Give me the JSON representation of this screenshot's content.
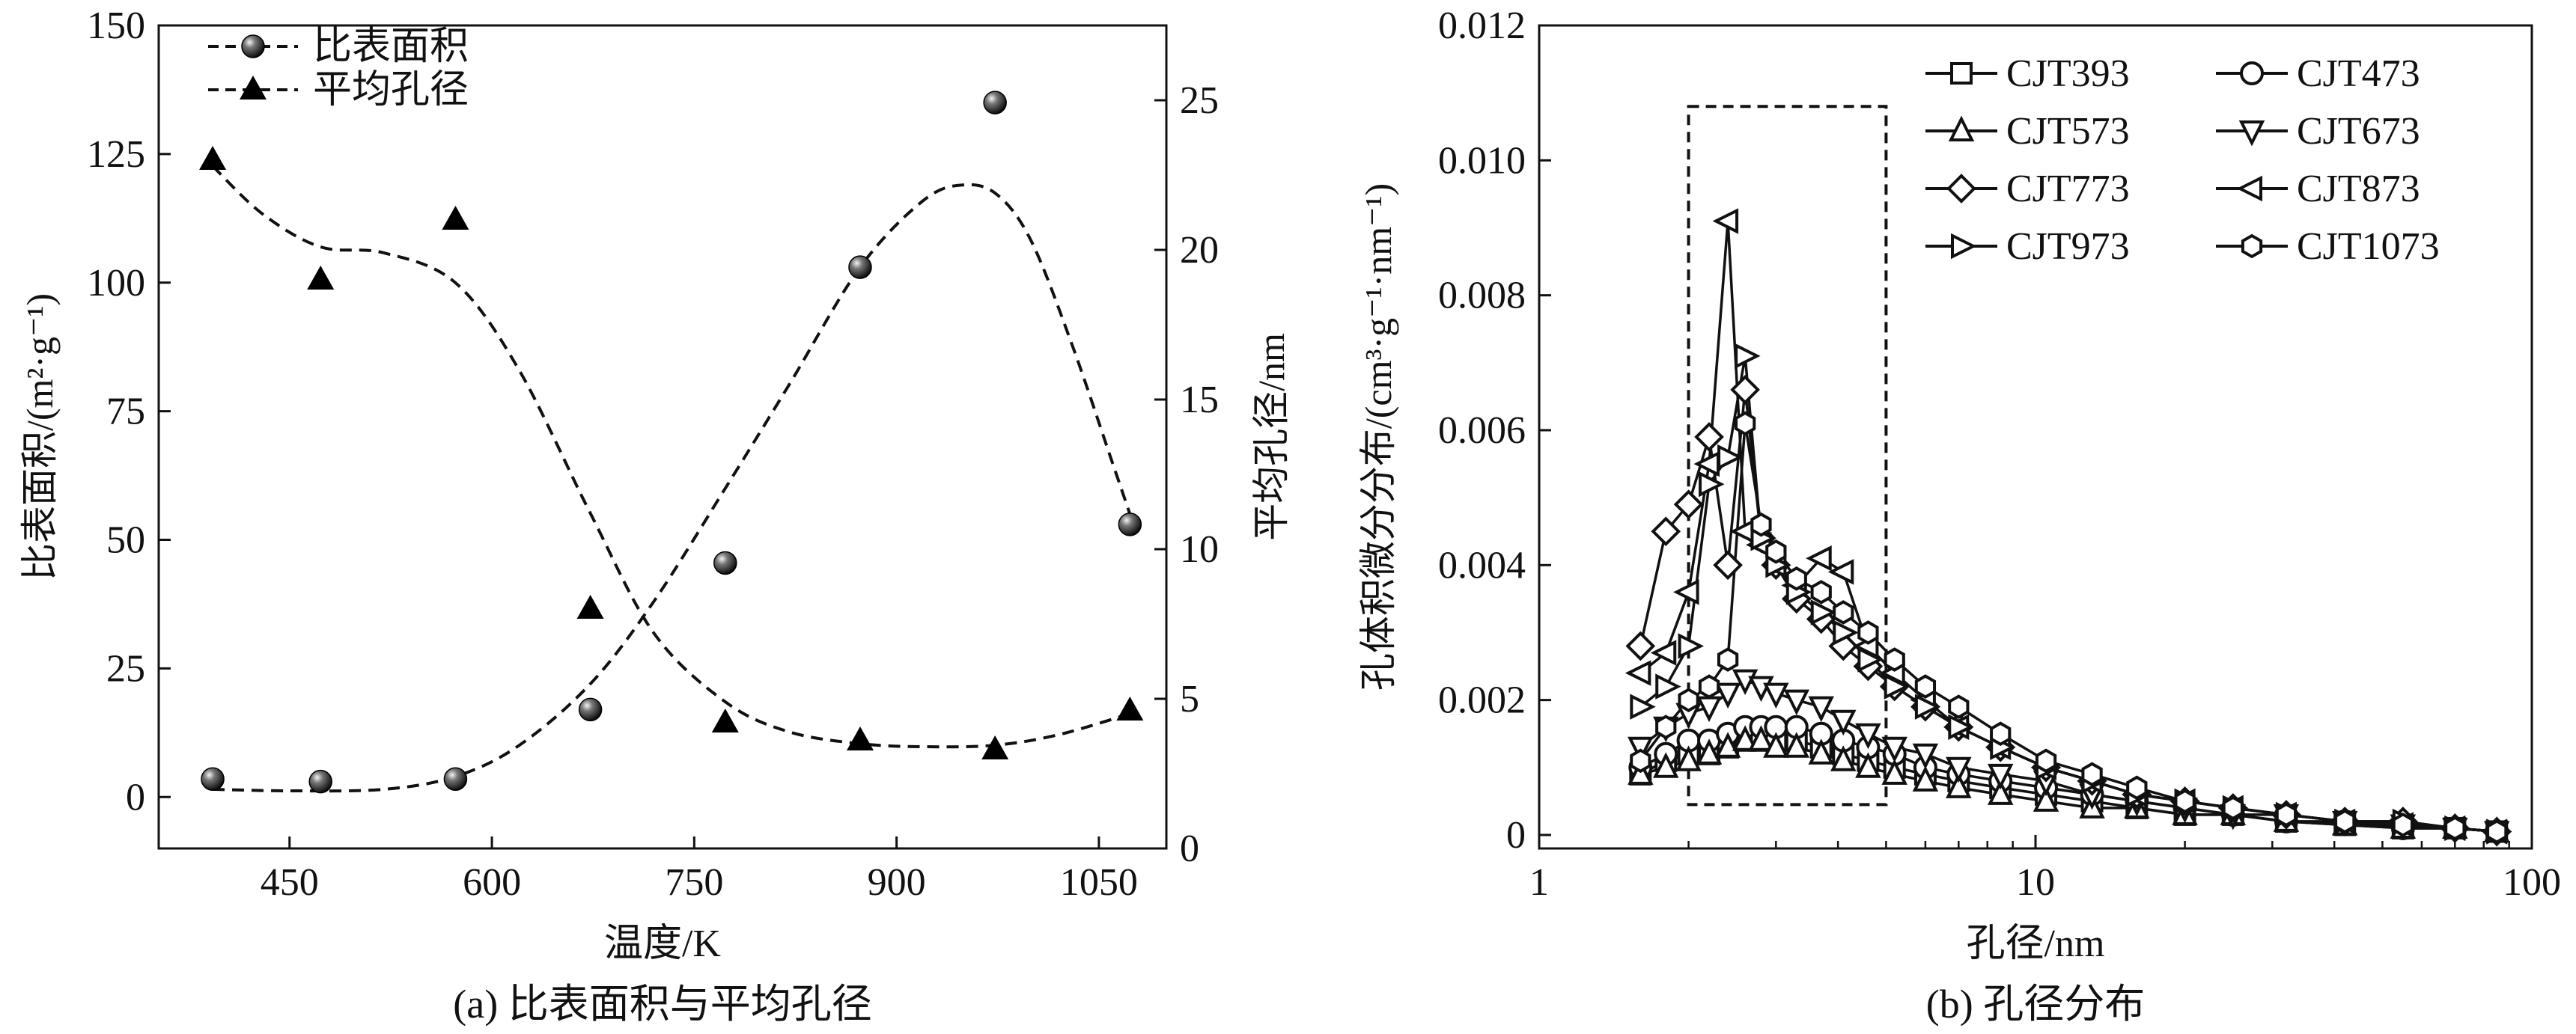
{
  "chart_data": [
    {
      "type": "scatter",
      "caption": "(a) 比表面积与平均孔径",
      "xlabel": "温度/K",
      "ylabel_left": "比表面积/(m²·g⁻¹)",
      "ylabel_right": "平均孔径/nm",
      "xlim": [
        353,
        1100
      ],
      "ylim_left": [
        -10,
        150
      ],
      "ylim_right": [
        0,
        27.5
      ],
      "xticks": [
        450,
        600,
        750,
        900,
        1050
      ],
      "yticks_left": [
        0,
        25,
        50,
        75,
        100,
        125,
        150
      ],
      "yticks_right": [
        0,
        5,
        10,
        15,
        20,
        25
      ],
      "legend_position": "top-left",
      "series": [
        {
          "name": "比表面积",
          "axis": "left",
          "marker": "sphere",
          "line_style": "dashed",
          "x": [
            393,
            473,
            573,
            673,
            773,
            873,
            973,
            1073
          ],
          "y": [
            3.5,
            3,
            3.5,
            17,
            45.5,
            103,
            135,
            53
          ],
          "fit_curve": {
            "x": [
              393,
              450,
              520,
              573,
              620,
              673,
              720,
              773,
              820,
              873,
              920,
              950,
              975,
              1000,
              1030,
              1060,
              1073
            ],
            "y": [
              1.5,
              1.2,
              1.5,
              4,
              10,
              22,
              38,
              60,
              80,
              103,
              116,
              119,
              117,
              108,
              88,
              65,
              55
            ]
          }
        },
        {
          "name": "平均孔径",
          "axis": "right",
          "marker": "triangle",
          "line_style": "dashed",
          "x": [
            393,
            473,
            573,
            673,
            773,
            873,
            973,
            1073
          ],
          "y": [
            23,
            19,
            21,
            8,
            4.2,
            3.6,
            3.3,
            4.6
          ],
          "fit_curve": {
            "x": [
              393,
              430,
              473,
              520,
              573,
              620,
              673,
              720,
              773,
              820,
              873,
              920,
              973,
              1020,
              1073
            ],
            "y": [
              22.8,
              21.2,
              20.1,
              19.9,
              18.9,
              16,
              11.2,
              7.2,
              4.9,
              3.9,
              3.5,
              3.4,
              3.45,
              3.8,
              4.5
            ]
          }
        }
      ]
    },
    {
      "type": "line",
      "caption": "(b) 孔径分布",
      "xlabel": "孔径/nm",
      "ylabel": "孔体积微分分布/(cm³·g⁻¹·nm⁻¹)",
      "xscale": "log",
      "xlim": [
        1,
        100
      ],
      "ylim": [
        -0.0002,
        0.012
      ],
      "xticks": [
        1,
        10,
        100
      ],
      "yticks": [
        0,
        0.002,
        0.004,
        0.006,
        0.008,
        0.01,
        0.012
      ],
      "ytick_labels": [
        "0",
        "0.002",
        "0.004",
        "0.006",
        "0.008",
        "0.010",
        "0.012"
      ],
      "legend_position": "top-right",
      "annotation_box": {
        "x": [
          2.0,
          5.0
        ],
        "y": [
          0.00045,
          0.0108
        ]
      },
      "x": [
        1.6,
        1.8,
        2.0,
        2.2,
        2.4,
        2.6,
        2.8,
        3.0,
        3.3,
        3.7,
        4.1,
        4.6,
        5.2,
        6.0,
        7.0,
        8.5,
        10.5,
        13,
        16,
        20,
        25,
        32,
        42,
        55,
        70,
        85
      ],
      "series": [
        {
          "name": "CJT393",
          "marker": "square",
          "y": [
            0.0009,
            0.0011,
            0.0012,
            0.0012,
            0.0013,
            0.0014,
            0.0014,
            0.0014,
            0.0014,
            0.0013,
            0.0012,
            0.0011,
            0.001,
            0.0009,
            0.0008,
            0.0007,
            0.0006,
            0.0005,
            0.0004,
            0.0003,
            0.0003,
            0.0002,
            0.00015,
            0.0001,
            0.0001,
            5e-05
          ]
        },
        {
          "name": "CJT473",
          "marker": "circle",
          "y": [
            0.001,
            0.0012,
            0.0014,
            0.0014,
            0.0015,
            0.0016,
            0.0016,
            0.0016,
            0.0016,
            0.0015,
            0.0014,
            0.0013,
            0.0012,
            0.001,
            0.0009,
            0.0008,
            0.0007,
            0.0006,
            0.0005,
            0.0004,
            0.0003,
            0.0002,
            0.0002,
            0.0001,
            0.0001,
            5e-05
          ]
        },
        {
          "name": "CJT573",
          "marker": "triangle-up",
          "y": [
            0.0009,
            0.001,
            0.0011,
            0.0012,
            0.0013,
            0.0014,
            0.0014,
            0.0013,
            0.0013,
            0.0012,
            0.0011,
            0.001,
            0.0009,
            0.0008,
            0.0007,
            0.0006,
            0.0005,
            0.0004,
            0.0004,
            0.0003,
            0.0003,
            0.0002,
            0.00015,
            0.0001,
            0.0001,
            5e-05
          ]
        },
        {
          "name": "CJT673",
          "marker": "triangle-down",
          "y": [
            0.0013,
            0.0016,
            0.0018,
            0.0019,
            0.0021,
            0.0023,
            0.0022,
            0.0021,
            0.002,
            0.0019,
            0.0017,
            0.0015,
            0.0013,
            0.0012,
            0.001,
            0.0009,
            0.0008,
            0.0006,
            0.0005,
            0.0004,
            0.0003,
            0.0003,
            0.0002,
            0.00015,
            0.0001,
            5e-05
          ]
        },
        {
          "name": "CJT773",
          "marker": "diamond",
          "y": [
            0.0028,
            0.0045,
            0.0049,
            0.0059,
            0.004,
            0.0066,
            0.0044,
            0.004,
            0.0035,
            0.0032,
            0.0028,
            0.0025,
            0.0022,
            0.0019,
            0.0016,
            0.0013,
            0.001,
            0.0008,
            0.0006,
            0.0005,
            0.0004,
            0.0003,
            0.0002,
            0.0002,
            0.0001,
            5e-05
          ]
        },
        {
          "name": "CJT873",
          "marker": "triangle-left",
          "y": [
            0.0024,
            0.0027,
            0.0036,
            0.0055,
            0.0091,
            0.0045,
            0.0043,
            0.004,
            0.0037,
            0.0041,
            0.0039,
            0.0028,
            0.0024,
            0.002,
            0.0016,
            0.0013,
            0.001,
            0.0008,
            0.0006,
            0.0005,
            0.0004,
            0.0003,
            0.0002,
            0.00015,
            0.0001,
            5e-05
          ]
        },
        {
          "name": "CJT973",
          "marker": "triangle-right",
          "y": [
            0.0019,
            0.0022,
            0.0028,
            0.0052,
            0.0056,
            0.0071,
            0.0044,
            0.004,
            0.0036,
            0.0033,
            0.003,
            0.0026,
            0.0022,
            0.0019,
            0.0016,
            0.0013,
            0.001,
            0.0008,
            0.0006,
            0.0005,
            0.0004,
            0.0003,
            0.0002,
            0.0002,
            0.0001,
            5e-05
          ]
        },
        {
          "name": "CJT1073",
          "marker": "hexagon",
          "y": [
            0.0011,
            0.0016,
            0.002,
            0.0022,
            0.0026,
            0.0061,
            0.0046,
            0.0042,
            0.0038,
            0.0036,
            0.0033,
            0.003,
            0.0026,
            0.0022,
            0.0019,
            0.0015,
            0.0011,
            0.0009,
            0.0007,
            0.0005,
            0.0004,
            0.0003,
            0.0002,
            0.00015,
            0.0001,
            5e-05
          ]
        }
      ]
    }
  ]
}
